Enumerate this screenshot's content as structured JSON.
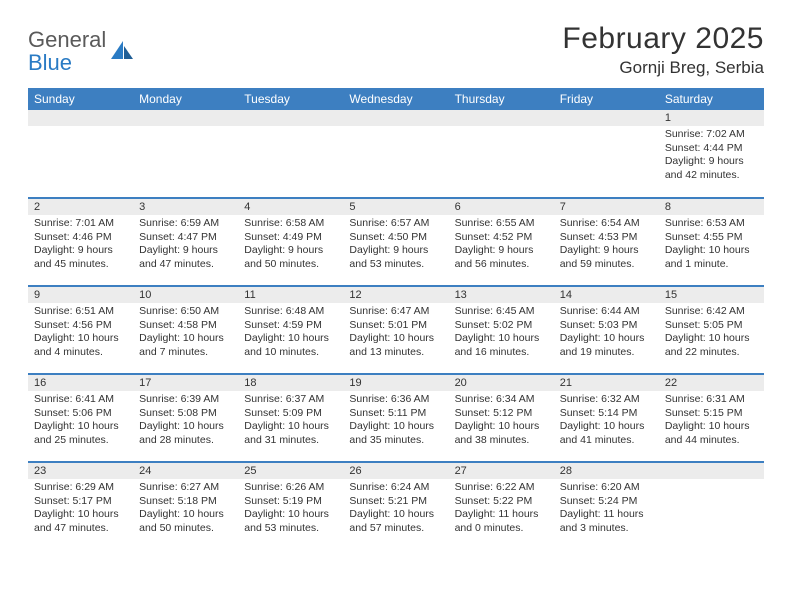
{
  "brand": {
    "word1": "General",
    "word2": "Blue"
  },
  "title": "February 2025",
  "location": "Gornji Breg, Serbia",
  "colors": {
    "header_bg": "#3d7fc1",
    "header_text": "#ffffff",
    "row_divider": "#3d7fc1",
    "daynum_bg": "#ececec",
    "logo_gray": "#5a5a5a",
    "logo_blue": "#2a7bc4",
    "body_text": "#333333",
    "page_bg": "#ffffff"
  },
  "dayHeaders": [
    "Sunday",
    "Monday",
    "Tuesday",
    "Wednesday",
    "Thursday",
    "Friday",
    "Saturday"
  ],
  "weeks": [
    [
      null,
      null,
      null,
      null,
      null,
      null,
      {
        "n": "1",
        "sunrise": "Sunrise: 7:02 AM",
        "sunset": "Sunset: 4:44 PM",
        "daylight": "Daylight: 9 hours and 42 minutes."
      }
    ],
    [
      {
        "n": "2",
        "sunrise": "Sunrise: 7:01 AM",
        "sunset": "Sunset: 4:46 PM",
        "daylight": "Daylight: 9 hours and 45 minutes."
      },
      {
        "n": "3",
        "sunrise": "Sunrise: 6:59 AM",
        "sunset": "Sunset: 4:47 PM",
        "daylight": "Daylight: 9 hours and 47 minutes."
      },
      {
        "n": "4",
        "sunrise": "Sunrise: 6:58 AM",
        "sunset": "Sunset: 4:49 PM",
        "daylight": "Daylight: 9 hours and 50 minutes."
      },
      {
        "n": "5",
        "sunrise": "Sunrise: 6:57 AM",
        "sunset": "Sunset: 4:50 PM",
        "daylight": "Daylight: 9 hours and 53 minutes."
      },
      {
        "n": "6",
        "sunrise": "Sunrise: 6:55 AM",
        "sunset": "Sunset: 4:52 PM",
        "daylight": "Daylight: 9 hours and 56 minutes."
      },
      {
        "n": "7",
        "sunrise": "Sunrise: 6:54 AM",
        "sunset": "Sunset: 4:53 PM",
        "daylight": "Daylight: 9 hours and 59 minutes."
      },
      {
        "n": "8",
        "sunrise": "Sunrise: 6:53 AM",
        "sunset": "Sunset: 4:55 PM",
        "daylight": "Daylight: 10 hours and 1 minute."
      }
    ],
    [
      {
        "n": "9",
        "sunrise": "Sunrise: 6:51 AM",
        "sunset": "Sunset: 4:56 PM",
        "daylight": "Daylight: 10 hours and 4 minutes."
      },
      {
        "n": "10",
        "sunrise": "Sunrise: 6:50 AM",
        "sunset": "Sunset: 4:58 PM",
        "daylight": "Daylight: 10 hours and 7 minutes."
      },
      {
        "n": "11",
        "sunrise": "Sunrise: 6:48 AM",
        "sunset": "Sunset: 4:59 PM",
        "daylight": "Daylight: 10 hours and 10 minutes."
      },
      {
        "n": "12",
        "sunrise": "Sunrise: 6:47 AM",
        "sunset": "Sunset: 5:01 PM",
        "daylight": "Daylight: 10 hours and 13 minutes."
      },
      {
        "n": "13",
        "sunrise": "Sunrise: 6:45 AM",
        "sunset": "Sunset: 5:02 PM",
        "daylight": "Daylight: 10 hours and 16 minutes."
      },
      {
        "n": "14",
        "sunrise": "Sunrise: 6:44 AM",
        "sunset": "Sunset: 5:03 PM",
        "daylight": "Daylight: 10 hours and 19 minutes."
      },
      {
        "n": "15",
        "sunrise": "Sunrise: 6:42 AM",
        "sunset": "Sunset: 5:05 PM",
        "daylight": "Daylight: 10 hours and 22 minutes."
      }
    ],
    [
      {
        "n": "16",
        "sunrise": "Sunrise: 6:41 AM",
        "sunset": "Sunset: 5:06 PM",
        "daylight": "Daylight: 10 hours and 25 minutes."
      },
      {
        "n": "17",
        "sunrise": "Sunrise: 6:39 AM",
        "sunset": "Sunset: 5:08 PM",
        "daylight": "Daylight: 10 hours and 28 minutes."
      },
      {
        "n": "18",
        "sunrise": "Sunrise: 6:37 AM",
        "sunset": "Sunset: 5:09 PM",
        "daylight": "Daylight: 10 hours and 31 minutes."
      },
      {
        "n": "19",
        "sunrise": "Sunrise: 6:36 AM",
        "sunset": "Sunset: 5:11 PM",
        "daylight": "Daylight: 10 hours and 35 minutes."
      },
      {
        "n": "20",
        "sunrise": "Sunrise: 6:34 AM",
        "sunset": "Sunset: 5:12 PM",
        "daylight": "Daylight: 10 hours and 38 minutes."
      },
      {
        "n": "21",
        "sunrise": "Sunrise: 6:32 AM",
        "sunset": "Sunset: 5:14 PM",
        "daylight": "Daylight: 10 hours and 41 minutes."
      },
      {
        "n": "22",
        "sunrise": "Sunrise: 6:31 AM",
        "sunset": "Sunset: 5:15 PM",
        "daylight": "Daylight: 10 hours and 44 minutes."
      }
    ],
    [
      {
        "n": "23",
        "sunrise": "Sunrise: 6:29 AM",
        "sunset": "Sunset: 5:17 PM",
        "daylight": "Daylight: 10 hours and 47 minutes."
      },
      {
        "n": "24",
        "sunrise": "Sunrise: 6:27 AM",
        "sunset": "Sunset: 5:18 PM",
        "daylight": "Daylight: 10 hours and 50 minutes."
      },
      {
        "n": "25",
        "sunrise": "Sunrise: 6:26 AM",
        "sunset": "Sunset: 5:19 PM",
        "daylight": "Daylight: 10 hours and 53 minutes."
      },
      {
        "n": "26",
        "sunrise": "Sunrise: 6:24 AM",
        "sunset": "Sunset: 5:21 PM",
        "daylight": "Daylight: 10 hours and 57 minutes."
      },
      {
        "n": "27",
        "sunrise": "Sunrise: 6:22 AM",
        "sunset": "Sunset: 5:22 PM",
        "daylight": "Daylight: 11 hours and 0 minutes."
      },
      {
        "n": "28",
        "sunrise": "Sunrise: 6:20 AM",
        "sunset": "Sunset: 5:24 PM",
        "daylight": "Daylight: 11 hours and 3 minutes."
      },
      null
    ]
  ]
}
